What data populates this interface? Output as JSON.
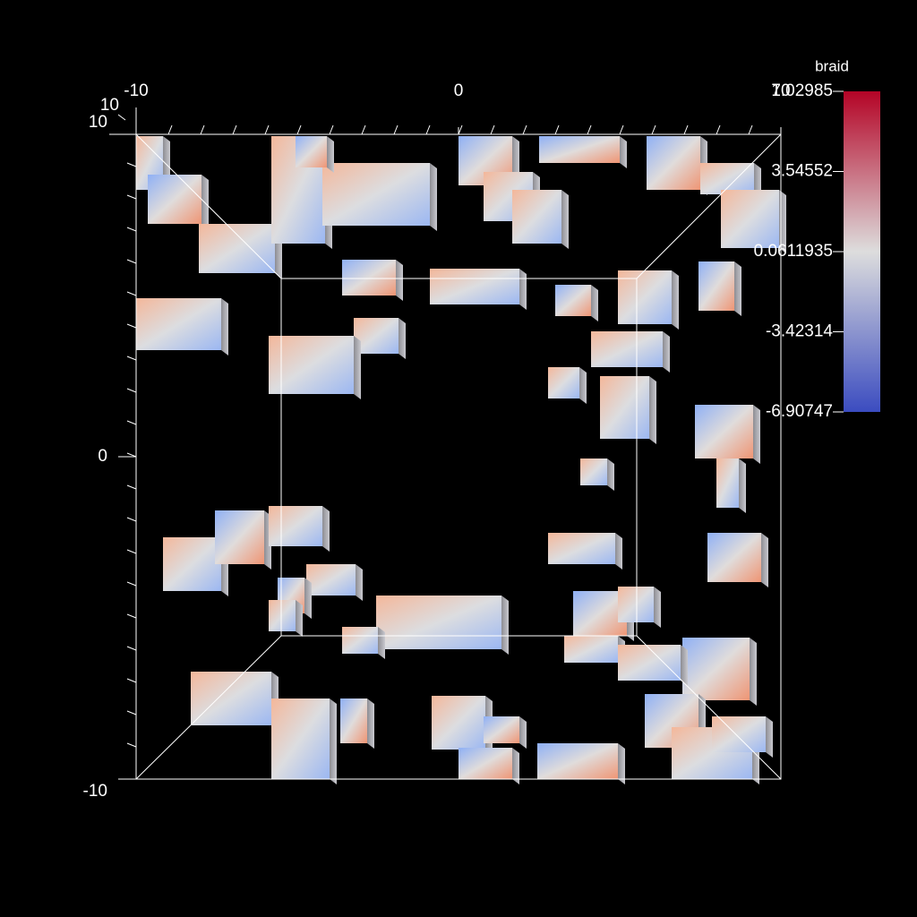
{
  "chart_data": {
    "type": "pseudocolor",
    "variable": "braid",
    "colorbar": {
      "lim": [
        -6.90747,
        7.02985
      ],
      "ticks": [
        7.02985,
        3.54552,
        0.0611935,
        -3.42314,
        -6.90747
      ],
      "colors": [
        "#3b4cc0",
        "#dddddd",
        "#b40426"
      ]
    },
    "xlim": [
      -10,
      10
    ],
    "xticks": [
      -10,
      0,
      10
    ],
    "ylim": [
      -10,
      10
    ],
    "yticks": [
      -10,
      0,
      10
    ],
    "zticks": [
      10
    ]
  }
}
